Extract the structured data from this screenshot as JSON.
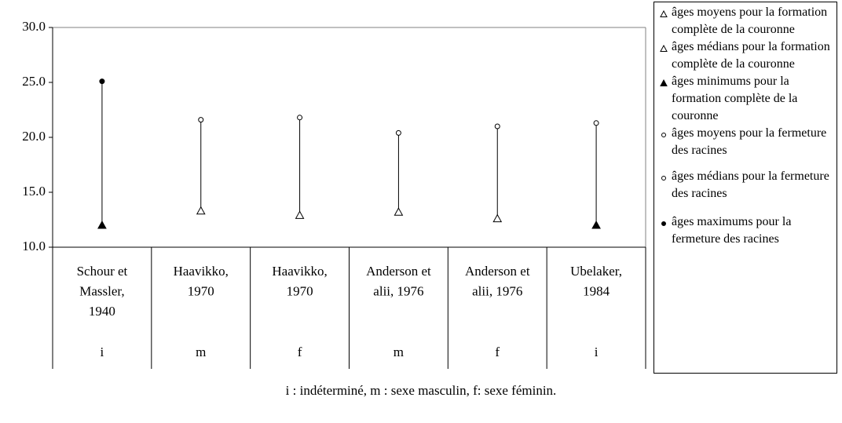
{
  "chart_data": {
    "type": "range",
    "categories": [
      [
        "Schour et",
        "Massler,",
        "1940"
      ],
      [
        "Haavikko,",
        "1970"
      ],
      [
        "Haavikko,",
        "1970"
      ],
      [
        "Anderson et",
        "alii, 1976"
      ],
      [
        "Anderson et",
        "alii, 1976"
      ],
      [
        "Ubelaker,",
        "1984"
      ]
    ],
    "sex": [
      "i",
      "m",
      "f",
      "m",
      "f",
      "i"
    ],
    "series": [
      {
        "name": "âges moyens pour la formation complète de la couronne",
        "marker": "triangle",
        "filled": false,
        "values": [
          null,
          null,
          null,
          13.2,
          12.6,
          null
        ]
      },
      {
        "name": "âges médians pour la formation complète de la couronne",
        "marker": "triangle",
        "filled": false,
        "values": [
          null,
          13.3,
          12.9,
          null,
          null,
          null
        ]
      },
      {
        "name": "âges minimums pour la formation complète de la couronne",
        "marker": "triangle",
        "filled": true,
        "values": [
          12.0,
          null,
          null,
          null,
          null,
          12.0
        ]
      },
      {
        "name": "âges moyens pour la fermeture des racines",
        "marker": "circle",
        "filled": false,
        "values": [
          null,
          null,
          null,
          20.4,
          21.0,
          21.3
        ]
      },
      {
        "name": "âges médians pour la fermeture des racines",
        "marker": "circle",
        "filled": false,
        "values": [
          null,
          21.6,
          21.8,
          null,
          null,
          null
        ]
      },
      {
        "name": "âges maximums pour la fermeture des racines",
        "marker": "circle",
        "filled": true,
        "values": [
          25.1,
          null,
          null,
          null,
          null,
          null
        ]
      }
    ],
    "ylim": [
      10,
      30
    ],
    "yticks": [
      {
        "value": 10,
        "label": "10.0"
      },
      {
        "value": 15,
        "label": "15.0"
      },
      {
        "value": 20,
        "label": "20.0"
      },
      {
        "value": 25,
        "label": "25.0"
      },
      {
        "value": 30,
        "label": "30.0"
      }
    ],
    "footnote": "i : indéterminé, m : sexe masculin, f: sexe féminin."
  }
}
